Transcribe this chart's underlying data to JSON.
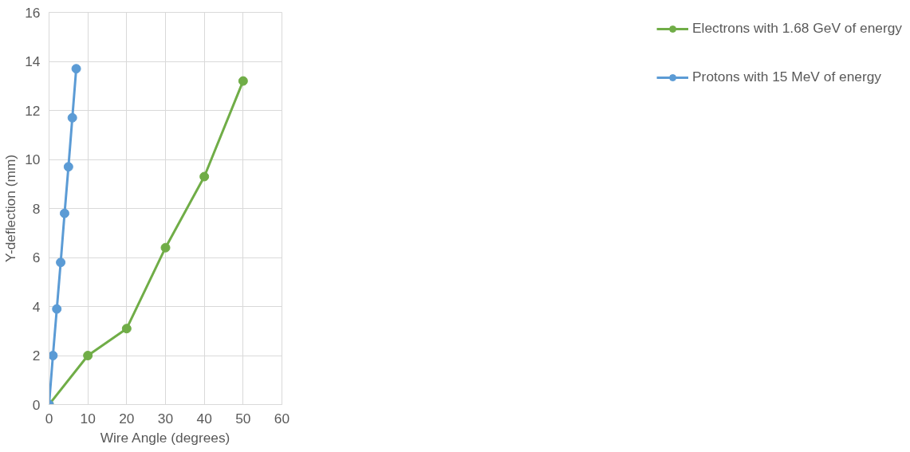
{
  "chart_data": {
    "type": "line",
    "xlabel": "Wire Angle (degrees)",
    "ylabel": "Y-deflection (mm)",
    "xlim": [
      0,
      60
    ],
    "xticks": [
      0,
      10,
      20,
      30,
      40,
      50,
      60
    ],
    "ylim": [
      0,
      16
    ],
    "yticks": [
      0,
      2,
      4,
      6,
      8,
      10,
      12,
      14,
      16
    ],
    "grid": true,
    "legend": "right",
    "marker": "circle",
    "line_style": "solid",
    "series": [
      {
        "name": "Electrons with 1.68 GeV of energy",
        "color": "#70ad47",
        "x": [
          0,
          10,
          20,
          30,
          40,
          50
        ],
        "values": [
          0,
          2.0,
          3.1,
          6.4,
          9.3,
          13.2
        ]
      },
      {
        "name": "Protons with 15 MeV of energy",
        "color": "#5b9bd5",
        "x": [
          0,
          1,
          2,
          3,
          4,
          5,
          6,
          7
        ],
        "values": [
          0,
          2.0,
          3.9,
          5.8,
          7.8,
          9.7,
          11.7,
          13.7
        ]
      }
    ]
  }
}
